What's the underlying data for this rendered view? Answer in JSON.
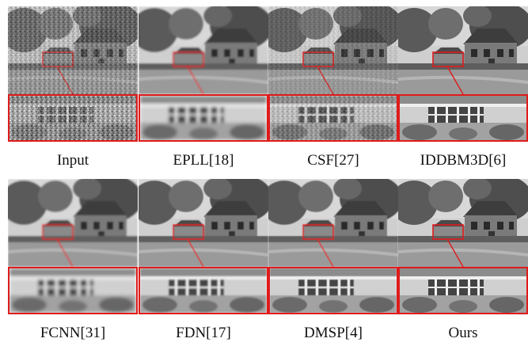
{
  "figure": {
    "panels": [
      {
        "label": "Input",
        "variant": "noisy"
      },
      {
        "label": "EPLL[18]",
        "variant": "blur"
      },
      {
        "label": "CSF[27]",
        "variant": "grain"
      },
      {
        "label": "IDDBM3D[6]",
        "variant": "sharp"
      },
      {
        "label": "FCNN[31]",
        "variant": "blur"
      },
      {
        "label": "FDN[17]",
        "variant": "soft"
      },
      {
        "label": "DMSP[4]",
        "variant": "soft"
      },
      {
        "label": "Ours",
        "variant": "sharp"
      }
    ],
    "colors": {
      "highlight": "#e01b1b"
    }
  }
}
